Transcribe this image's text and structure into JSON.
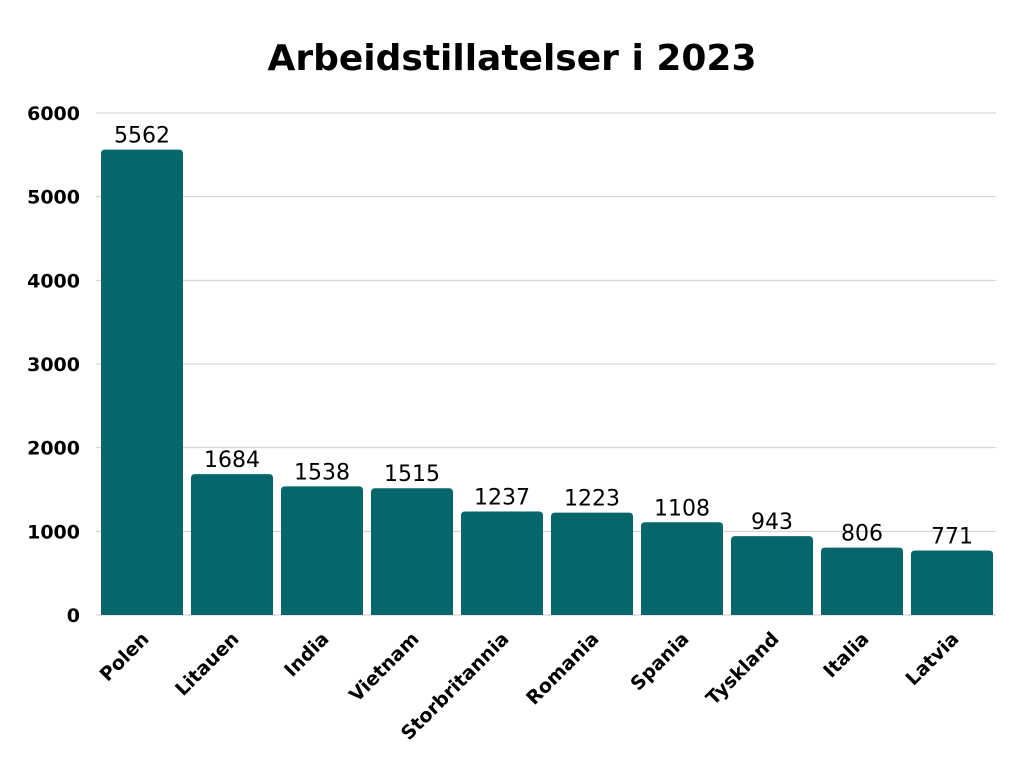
{
  "chart_data": {
    "type": "bar",
    "title": "Arbeidstillatelser i 2023",
    "xlabel": "",
    "ylabel": "",
    "categories": [
      "Polen",
      "Litauen",
      "India",
      "Vietnam",
      "Storbritannia",
      "Romania",
      "Spania",
      "Tyskland",
      "Italia",
      "Latvia"
    ],
    "values": [
      5562,
      1684,
      1538,
      1515,
      1237,
      1223,
      1108,
      943,
      806,
      771
    ],
    "ylim": [
      0,
      6000
    ],
    "yticks": [
      "0",
      "1000",
      "2000",
      "3000",
      "4000",
      "5000",
      "6000"
    ],
    "grid": true,
    "legend": "none",
    "bar_color": "#07666b",
    "data_labels": true
  }
}
